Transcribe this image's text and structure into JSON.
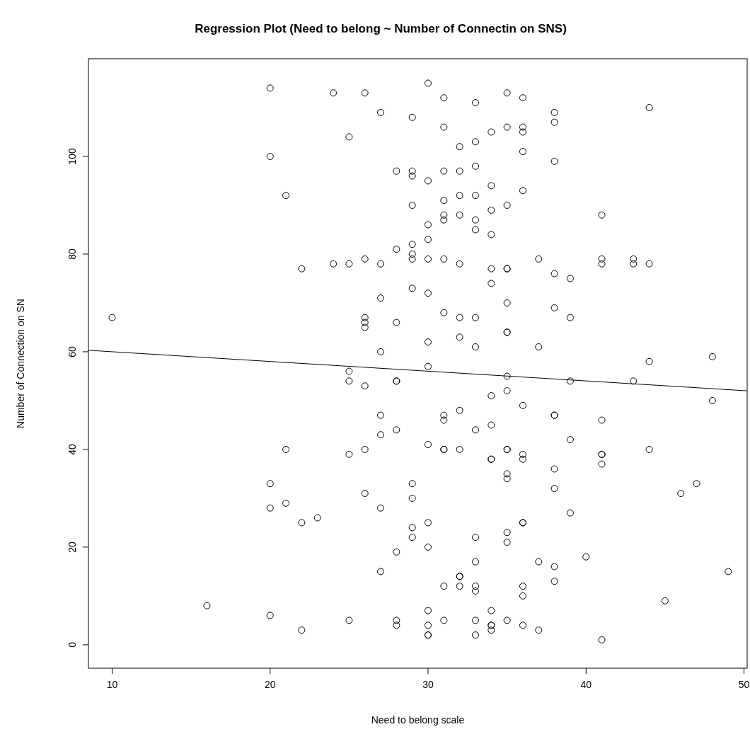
{
  "chart_data": {
    "type": "scatter",
    "title": "Regression Plot (Need to belong ~ Number of Connectin on SNS)",
    "xlabel": "Need to belong scale",
    "ylabel": "Number of Connection on SN",
    "xlim": [
      8.5,
      50.2
    ],
    "ylim": [
      -4.8,
      120
    ],
    "xticks": [
      10,
      20,
      30,
      40,
      50
    ],
    "yticks": [
      0,
      20,
      40,
      60,
      80,
      100
    ],
    "grid": false,
    "series": [
      {
        "color": "#000000",
        "marker": "circle",
        "x": [
          10,
          16,
          20,
          20,
          20,
          20,
          20,
          21,
          21,
          21,
          22,
          22,
          22,
          23,
          24,
          24,
          25,
          25,
          25,
          25,
          25,
          25,
          26,
          26,
          26,
          26,
          26,
          26,
          26,
          26,
          27,
          27,
          27,
          27,
          27,
          27,
          27,
          27,
          28,
          28,
          28,
          28,
          28,
          28,
          28,
          28,
          28,
          29,
          29,
          29,
          29,
          29,
          29,
          29,
          29,
          29,
          29,
          29,
          29,
          30,
          30,
          30,
          30,
          30,
          30,
          30,
          30,
          30,
          30,
          30,
          30,
          30,
          30,
          30,
          31,
          31,
          31,
          31,
          31,
          31,
          31,
          31,
          31,
          31,
          31,
          31,
          31,
          31,
          32,
          32,
          32,
          32,
          32,
          32,
          32,
          32,
          32,
          32,
          32,
          32,
          33,
          33,
          33,
          33,
          33,
          33,
          33,
          33,
          33,
          33,
          33,
          33,
          33,
          33,
          33,
          34,
          34,
          34,
          34,
          34,
          34,
          34,
          34,
          34,
          34,
          34,
          34,
          34,
          34,
          35,
          35,
          35,
          35,
          35,
          35,
          35,
          35,
          35,
          35,
          35,
          35,
          35,
          35,
          35,
          35,
          35,
          36,
          36,
          36,
          36,
          36,
          36,
          36,
          36,
          36,
          36,
          36,
          36,
          36,
          37,
          37,
          37,
          37,
          38,
          38,
          38,
          38,
          38,
          38,
          38,
          38,
          38,
          38,
          38,
          39,
          39,
          39,
          39,
          39,
          40,
          41,
          41,
          41,
          41,
          41,
          41,
          41,
          41,
          43,
          43,
          43,
          44,
          44,
          44,
          44,
          45,
          46,
          47,
          48,
          48,
          49
        ],
        "values": [
          67,
          8,
          114,
          100,
          33,
          28,
          6,
          92,
          40,
          29,
          77,
          25,
          3,
          26,
          113,
          78,
          104,
          78,
          56,
          54,
          39,
          5,
          113,
          79,
          67,
          66,
          65,
          53,
          40,
          31,
          109,
          78,
          71,
          60,
          47,
          43,
          28,
          15,
          97,
          81,
          66,
          54,
          54,
          44,
          19,
          5,
          4,
          108,
          97,
          96,
          90,
          82,
          80,
          79,
          73,
          33,
          30,
          24,
          22,
          115,
          95,
          86,
          83,
          79,
          72,
          62,
          57,
          41,
          25,
          20,
          7,
          4,
          2,
          2,
          112,
          106,
          97,
          91,
          88,
          87,
          79,
          68,
          47,
          46,
          40,
          40,
          12,
          5,
          102,
          97,
          92,
          88,
          78,
          67,
          63,
          48,
          40,
          14,
          14,
          12,
          111,
          103,
          98,
          92,
          87,
          85,
          67,
          61,
          44,
          22,
          17,
          12,
          11,
          5,
          2,
          105,
          94,
          89,
          84,
          77,
          74,
          51,
          45,
          38,
          38,
          7,
          4,
          4,
          3,
          113,
          106,
          90,
          77,
          77,
          70,
          64,
          64,
          55,
          52,
          40,
          40,
          35,
          34,
          23,
          21,
          5,
          112,
          106,
          105,
          101,
          93,
          49,
          39,
          38,
          25,
          25,
          12,
          10,
          4,
          79,
          61,
          17,
          3,
          109,
          107,
          99,
          76,
          69,
          47,
          47,
          36,
          32,
          16,
          13,
          75,
          67,
          54,
          42,
          27,
          18,
          88,
          79,
          78,
          46,
          39,
          39,
          37,
          1,
          79,
          78,
          54,
          110,
          78,
          58,
          40,
          9,
          31,
          33,
          59,
          50,
          15
        ]
      },
      {
        "type": "line",
        "color": "#000000",
        "x": [
          8.5,
          50.2
        ],
        "values": [
          60.3,
          52.0
        ]
      }
    ]
  }
}
